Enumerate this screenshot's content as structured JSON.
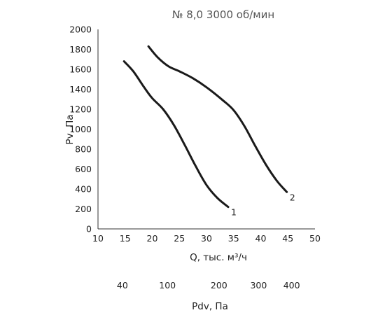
{
  "chart_data": {
    "type": "line",
    "title": "№ 8,0 3000 об/мин",
    "xlabel": "Q, тыс. м³/ч",
    "ylabel": "Pv, Па",
    "x2label": "Pdv, Па",
    "xlim": [
      10,
      50
    ],
    "ylim": [
      0,
      2000
    ],
    "x_ticks": [
      "10",
      "15",
      "20",
      "25",
      "30",
      "35",
      "40",
      "45",
      "50"
    ],
    "y_ticks": [
      "0",
      "200",
      "400",
      "600",
      "800",
      "1000",
      "1200",
      "1400",
      "1600",
      "1800",
      "2000"
    ],
    "x2_ticks": [
      {
        "label": "40",
        "q": 14.5
      },
      {
        "label": "100",
        "q": 22.8
      },
      {
        "label": "200",
        "q": 32.3
      },
      {
        "label": "300",
        "q": 39.6
      },
      {
        "label": "400",
        "q": 45.7
      }
    ],
    "grid": false,
    "series": [
      {
        "name": "1",
        "x": [
          14.8,
          16.5,
          18.5,
          20.0,
          22.0,
          24.0,
          26.0,
          28.0,
          30.0,
          32.0,
          34.0
        ],
        "y": [
          1680,
          1580,
          1420,
          1310,
          1200,
          1040,
          840,
          630,
          440,
          310,
          220
        ],
        "color": "#1a1a1a"
      },
      {
        "name": "2",
        "x": [
          19.3,
          21.0,
          23.0,
          25.0,
          27.5,
          30.0,
          33.0,
          35.0,
          37.0,
          39.0,
          41.0,
          43.0,
          44.8
        ],
        "y": [
          1830,
          1720,
          1630,
          1580,
          1510,
          1420,
          1290,
          1190,
          1030,
          830,
          640,
          480,
          370
        ],
        "color": "#1a1a1a"
      }
    ]
  }
}
